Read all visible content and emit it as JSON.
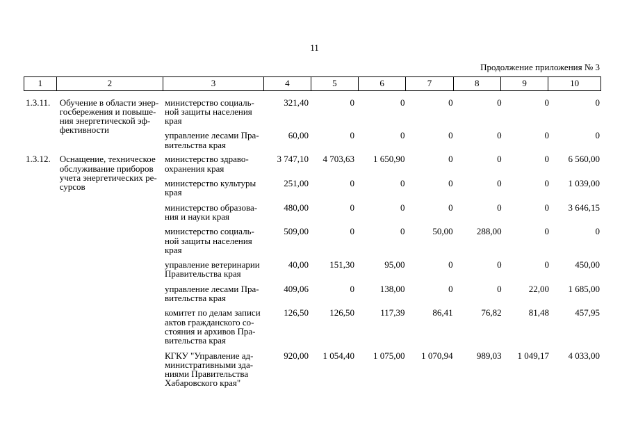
{
  "page": {
    "number": "11",
    "continuation": "Продолжение приложения № 3"
  },
  "table": {
    "column_numbers": [
      "1",
      "2",
      "3",
      "4",
      "5",
      "6",
      "7",
      "8",
      "9",
      "10"
    ],
    "groups": [
      {
        "code": "1.3.11.",
        "title": "Обучение в области энер-\nгосбережения и повыше-\nния энергетической эф-\nфективности",
        "rows": [
          {
            "org": "министерство социаль-\nной защиты населения\nкрая",
            "values": [
              "321,40",
              "0",
              "0",
              "0",
              "0",
              "0",
              "0"
            ]
          },
          {
            "org": "управление лесами Пра-\nвительства края",
            "values": [
              "60,00",
              "0",
              "0",
              "0",
              "0",
              "0",
              "0"
            ]
          }
        ]
      },
      {
        "code": "1.3.12.",
        "title": "Оснащение, техническое\nобслуживание приборов\nучета энергетических ре-\nсурсов",
        "rows": [
          {
            "org": "министерство здраво-\nохранения края",
            "values": [
              "3 747,10",
              "4 703,63",
              "1 650,90",
              "0",
              "0",
              "0",
              "6 560,00"
            ]
          },
          {
            "org": "министерство культуры\nкрая",
            "values": [
              "251,00",
              "0",
              "0",
              "0",
              "0",
              "0",
              "1 039,00"
            ]
          },
          {
            "org": "министерство образова-\nния и науки края",
            "values": [
              "480,00",
              "0",
              "0",
              "0",
              "0",
              "0",
              "3 646,15"
            ]
          },
          {
            "org": "министерство социаль-\nной защиты населения\nкрая",
            "values": [
              "509,00",
              "0",
              "0",
              "50,00",
              "288,00",
              "0",
              "0"
            ]
          },
          {
            "org": "управление ветеринарии\nПравительства края",
            "values": [
              "40,00",
              "151,30",
              "95,00",
              "0",
              "0",
              "0",
              "450,00"
            ]
          },
          {
            "org": "управление лесами Пра-\nвительства края",
            "values": [
              "409,06",
              "0",
              "138,00",
              "0",
              "0",
              "22,00",
              "1 685,00"
            ]
          },
          {
            "org": "комитет по делам записи\nактов гражданского со-\nстояния и архивов Пра-\nвительства края",
            "values": [
              "126,50",
              "126,50",
              "117,39",
              "86,41",
              "76,82",
              "81,48",
              "457,95"
            ]
          },
          {
            "org": "КГКУ \"Управление ад-\nминистративными зда-\nниями Правительства\nХабаровского края\"",
            "values": [
              "920,00",
              "1 054,40",
              "1 075,00",
              "1 070,94",
              "989,03",
              "1 049,17",
              "4 033,00"
            ]
          }
        ]
      }
    ]
  }
}
